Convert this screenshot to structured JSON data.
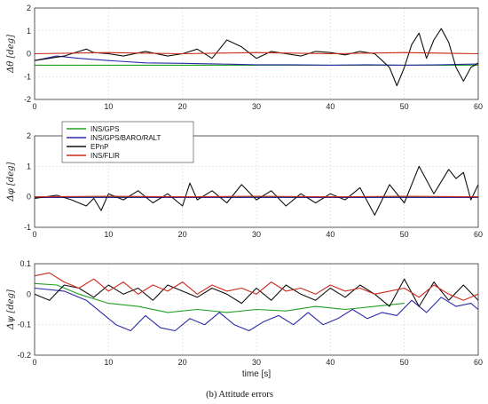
{
  "chart_data": [
    {
      "type": "line",
      "ylabel": "Δθ  [deg]",
      "xlabel": "",
      "xlim": [
        0,
        60
      ],
      "ylim": [
        -2,
        2
      ],
      "xticks": [
        0,
        10,
        20,
        30,
        40,
        50,
        60
      ],
      "yticks": [
        -2,
        -1,
        0,
        1,
        2
      ],
      "grid": true,
      "legend": "",
      "series": [
        {
          "name": "INS/GPS",
          "color": "#22a022",
          "x": [
            0,
            60
          ],
          "y": [
            -0.5,
            -0.5
          ]
        },
        {
          "name": "INS/GPS/BARO/RALT",
          "color": "#2b2ba8",
          "x": [
            0,
            3,
            6,
            10,
            15,
            20,
            25,
            30,
            35,
            40,
            45,
            50,
            55,
            60
          ],
          "y": [
            -0.3,
            -0.1,
            -0.2,
            -0.3,
            -0.4,
            -0.42,
            -0.45,
            -0.48,
            -0.48,
            -0.5,
            -0.48,
            -0.5,
            -0.48,
            -0.45
          ]
        },
        {
          "name": "EPnP",
          "color": "#111111",
          "x": [
            0,
            2,
            4,
            6,
            7,
            8,
            10,
            12,
            15,
            18,
            20,
            22,
            24,
            26,
            28,
            30,
            32,
            34,
            36,
            38,
            40,
            42,
            44,
            46,
            47,
            48,
            49,
            50,
            51,
            52,
            53,
            54,
            55,
            56,
            57,
            58,
            59,
            60
          ],
          "y": [
            -0.3,
            -0.2,
            -0.1,
            0.1,
            0.2,
            0.05,
            0.0,
            -0.1,
            0.1,
            -0.1,
            0.0,
            0.2,
            -0.2,
            0.6,
            0.3,
            -0.2,
            0.1,
            0.0,
            -0.1,
            0.1,
            0.05,
            -0.05,
            0.1,
            0.0,
            -0.3,
            -0.6,
            -1.4,
            -0.6,
            0.4,
            0.9,
            -0.2,
            0.6,
            1.1,
            0.5,
            -0.6,
            -1.2,
            -0.6,
            -0.4
          ]
        },
        {
          "name": "INS/FLIR",
          "color": "#cc2a1a",
          "x": [
            0,
            10,
            20,
            30,
            40,
            50,
            60
          ],
          "y": [
            0.0,
            0.05,
            0.0,
            0.05,
            0.0,
            0.05,
            0.0
          ]
        }
      ]
    },
    {
      "type": "line",
      "ylabel": "Δφ  [deg]",
      "xlabel": "",
      "xlim": [
        0,
        60
      ],
      "ylim": [
        -1,
        2
      ],
      "xticks": [
        0,
        10,
        20,
        30,
        40,
        50,
        60
      ],
      "yticks": [
        -1,
        0,
        1,
        2
      ],
      "grid": true,
      "legend": "top-left",
      "series": [
        {
          "name": "INS/GPS",
          "color": "#22a022",
          "x": [
            0,
            60
          ],
          "y": [
            0.0,
            0.0
          ]
        },
        {
          "name": "INS/GPS/BARO/RALT",
          "color": "#2b2ba8",
          "x": [
            0,
            60
          ],
          "y": [
            -0.02,
            -0.02
          ]
        },
        {
          "name": "EPnP",
          "color": "#111111",
          "x": [
            0,
            3,
            5,
            7,
            8,
            9,
            10,
            12,
            14,
            16,
            18,
            20,
            21,
            22,
            24,
            26,
            28,
            30,
            32,
            34,
            36,
            38,
            40,
            42,
            44,
            46,
            48,
            50,
            52,
            54,
            56,
            57,
            58,
            59,
            60
          ],
          "y": [
            -0.05,
            0.05,
            -0.1,
            -0.3,
            -0.05,
            -0.45,
            0.1,
            -0.1,
            0.2,
            -0.2,
            0.1,
            -0.3,
            0.45,
            -0.1,
            0.2,
            -0.2,
            0.4,
            -0.1,
            0.2,
            -0.3,
            0.1,
            -0.2,
            0.1,
            -0.1,
            0.3,
            -0.6,
            0.4,
            -0.2,
            1.0,
            0.1,
            0.9,
            0.6,
            0.8,
            -0.1,
            0.4
          ]
        },
        {
          "name": "INS/FLIR",
          "color": "#cc2a1a",
          "x": [
            0,
            10,
            20,
            30,
            40,
            50,
            60
          ],
          "y": [
            0.0,
            0.02,
            0.0,
            0.02,
            0.0,
            0.02,
            0.0
          ]
        }
      ]
    },
    {
      "type": "line",
      "ylabel": "Δψ  [deg]",
      "xlabel": "time  [s]",
      "xlim": [
        0,
        60
      ],
      "ylim": [
        -0.2,
        0.1
      ],
      "xticks": [
        0,
        10,
        20,
        30,
        40,
        50,
        60
      ],
      "yticks": [
        -0.2,
        -0.1,
        0,
        0.1
      ],
      "ytick_labels": [
        "-0.2",
        "-0.1",
        "0",
        "0.1"
      ],
      "grid": true,
      "legend": "",
      "series": [
        {
          "name": "INS/GPS",
          "color": "#22a022",
          "x": [
            0,
            3,
            6,
            10,
            14,
            18,
            22,
            26,
            30,
            34,
            38,
            42,
            46,
            50
          ],
          "y": [
            0.035,
            0.03,
            0.0,
            -0.03,
            -0.04,
            -0.06,
            -0.05,
            -0.06,
            -0.05,
            -0.055,
            -0.04,
            -0.05,
            -0.04,
            -0.03
          ]
        },
        {
          "name": "INS/GPS/BARO/RALT",
          "color": "#2b2ba8",
          "x": [
            0,
            4,
            7,
            9,
            11,
            13,
            15,
            17,
            19,
            21,
            23,
            25,
            27,
            29,
            31,
            33,
            35,
            37,
            39,
            41,
            43,
            45,
            47,
            49,
            51,
            53,
            55,
            57,
            59,
            60
          ],
          "y": [
            0.02,
            0.01,
            -0.02,
            -0.06,
            -0.1,
            -0.12,
            -0.07,
            -0.11,
            -0.12,
            -0.08,
            -0.1,
            -0.06,
            -0.1,
            -0.12,
            -0.09,
            -0.07,
            -0.1,
            -0.06,
            -0.1,
            -0.08,
            -0.05,
            -0.08,
            -0.06,
            -0.07,
            -0.02,
            -0.06,
            -0.01,
            -0.04,
            -0.03,
            -0.05
          ]
        },
        {
          "name": "EPnP",
          "color": "#111111",
          "x": [
            0,
            2,
            4,
            6,
            8,
            10,
            12,
            14,
            16,
            18,
            20,
            22,
            24,
            26,
            28,
            30,
            32,
            34,
            36,
            38,
            40,
            42,
            44,
            46,
            48,
            50,
            52,
            54,
            56,
            58,
            60
          ],
          "y": [
            0.0,
            -0.02,
            0.03,
            0.02,
            -0.01,
            0.03,
            0.0,
            0.02,
            -0.02,
            0.03,
            0.01,
            -0.01,
            0.02,
            0.0,
            -0.03,
            0.02,
            -0.02,
            0.03,
            0.0,
            -0.02,
            0.02,
            -0.01,
            0.03,
            0.0,
            -0.04,
            0.05,
            -0.04,
            0.04,
            -0.02,
            0.03,
            -0.02
          ]
        },
        {
          "name": "INS/FLIR",
          "color": "#cc2a1a",
          "x": [
            0,
            2,
            4,
            6,
            8,
            10,
            12,
            14,
            16,
            18,
            20,
            22,
            24,
            26,
            28,
            30,
            32,
            34,
            36,
            38,
            40,
            42,
            44,
            46,
            48,
            50,
            52,
            54,
            56,
            58,
            60
          ],
          "y": [
            0.06,
            0.07,
            0.04,
            0.02,
            0.05,
            0.01,
            0.04,
            0.0,
            0.03,
            0.01,
            0.04,
            0.0,
            0.03,
            0.01,
            0.02,
            0.0,
            0.04,
            0.01,
            0.02,
            0.0,
            0.03,
            0.01,
            0.02,
            0.0,
            0.01,
            0.02,
            -0.01,
            0.03,
            0.0,
            -0.02,
            0.0
          ]
        }
      ]
    }
  ],
  "legend_entries": [
    "INS/GPS",
    "INS/GPS/BARO/RALT",
    "EPnP",
    "INS/FLIR"
  ],
  "legend_colors": [
    "#22a022",
    "#2b2ba8",
    "#111111",
    "#cc2a1a"
  ],
  "caption": "(b)   Attitude errors"
}
